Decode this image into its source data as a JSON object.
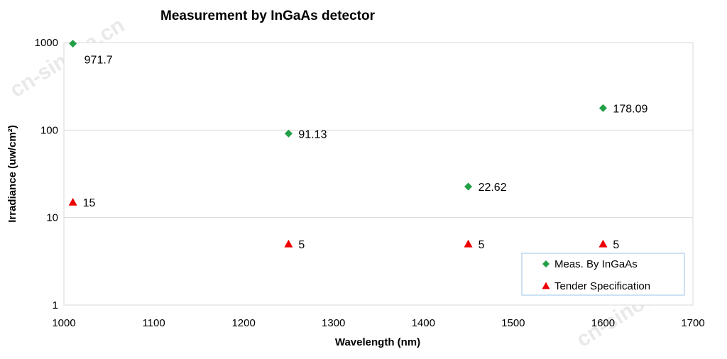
{
  "chart_data": {
    "type": "scatter",
    "title": "Measurement by InGaAs detector",
    "xlabel": "Wavelength (nm)",
    "ylabel": "Irradiance (uw/cm²)",
    "xlim": [
      1000,
      1700
    ],
    "ylim": [
      1,
      1000
    ],
    "yscale": "log",
    "x_ticks": [
      "1000",
      "1100",
      "1200",
      "1300",
      "1400",
      "1500",
      "1600",
      "1700"
    ],
    "y_ticks": [
      "1",
      "10",
      "100",
      "1000"
    ],
    "grid": "horizontal",
    "legend_position": "bottom-right",
    "series": [
      {
        "name": "Meas. By InGaAs",
        "marker": "diamond",
        "color": "#22a045",
        "x": [
          1010,
          1250,
          1450,
          1600
        ],
        "y": [
          971.7,
          91.13,
          22.62,
          178.09
        ],
        "labels": [
          "971.7",
          "91.13",
          "22.62",
          "178.09"
        ]
      },
      {
        "name": "Tender Specification",
        "marker": "triangle",
        "color": "#ee0000",
        "x": [
          1010,
          1250,
          1450,
          1600
        ],
        "y": [
          15,
          5,
          5,
          5
        ],
        "labels": [
          "15",
          "5",
          "5",
          "5"
        ]
      }
    ]
  },
  "watermark": "cn-sinosa.cn"
}
